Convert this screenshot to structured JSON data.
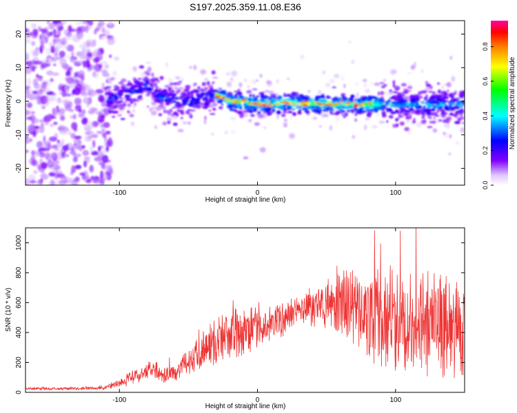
{
  "title": "S197.2025.359.11.08.E36",
  "chart_data": [
    {
      "type": "heatmap",
      "xlabel": "Height of straight line (km)",
      "ylabel": "Frequency (Hz)",
      "xlim": [
        -168,
        150
      ],
      "ylim": [
        -25,
        24
      ],
      "xticks": [
        -100,
        0,
        100
      ],
      "yticks": [
        -20,
        -10,
        0,
        10,
        20
      ],
      "colorbar": {
        "label": "Normalized spectral amplitude",
        "range": [
          0,
          0.95
        ],
        "ticks": [
          0.0,
          0.2,
          0.4,
          0.6,
          0.8
        ],
        "tick_labels": [
          "0.0",
          "0.2",
          "0.4",
          "0.6",
          "0.8"
        ],
        "colormap": [
          "#ffffff",
          "#8000ff",
          "#0000ff",
          "#00ffff",
          "#00ff00",
          "#ffff00",
          "#ff8000",
          "#ff0000",
          "#ff00a0"
        ]
      },
      "features": {
        "noise_region_x": [
          -168,
          -110
        ],
        "signal_start_x": -110,
        "strong_band_x": [
          -30,
          90
        ],
        "band_center_hz": [
          [
            -110,
            0
          ],
          [
            -90,
            3
          ],
          [
            -80,
            5
          ],
          [
            -70,
            1
          ],
          [
            -50,
            0
          ],
          [
            -30,
            2
          ],
          [
            -20,
            0
          ],
          [
            -10,
            0
          ],
          [
            0,
            -1
          ],
          [
            20,
            -0.5
          ],
          [
            60,
            -1
          ],
          [
            90,
            -1
          ],
          [
            100,
            -1
          ],
          [
            150,
            -1
          ]
        ]
      }
    },
    {
      "type": "line",
      "xlabel": "Height of straight line (km)",
      "ylabel": "SNR (10 * v/v)",
      "xlim": [
        -168,
        150
      ],
      "ylim": [
        0,
        1100
      ],
      "xticks": [
        -100,
        0,
        100
      ],
      "yticks": [
        0,
        200,
        400,
        600,
        800,
        1000
      ],
      "color": "#ee3333",
      "series": [
        {
          "name": "SNR",
          "x": [
            -168,
            -150,
            -130,
            -112,
            -100,
            -90,
            -80,
            -75,
            -70,
            -60,
            -50,
            -40,
            -30,
            -20,
            -10,
            0,
            10,
            20,
            30,
            40,
            50,
            60,
            70,
            80,
            90,
            100,
            110,
            120,
            130,
            140,
            150
          ],
          "values": [
            25,
            25,
            25,
            28,
            60,
            100,
            140,
            170,
            120,
            130,
            210,
            290,
            340,
            380,
            410,
            430,
            460,
            490,
            550,
            580,
            580,
            610,
            560,
            520,
            500,
            490,
            470,
            460,
            450,
            440,
            450
          ],
          "amplitude": [
            10,
            10,
            10,
            12,
            30,
            50,
            60,
            70,
            60,
            60,
            90,
            140,
            170,
            180,
            160,
            140,
            120,
            120,
            120,
            140,
            170,
            220,
            260,
            300,
            360,
            380,
            380,
            380,
            360,
            360,
            360
          ]
        }
      ]
    }
  ]
}
